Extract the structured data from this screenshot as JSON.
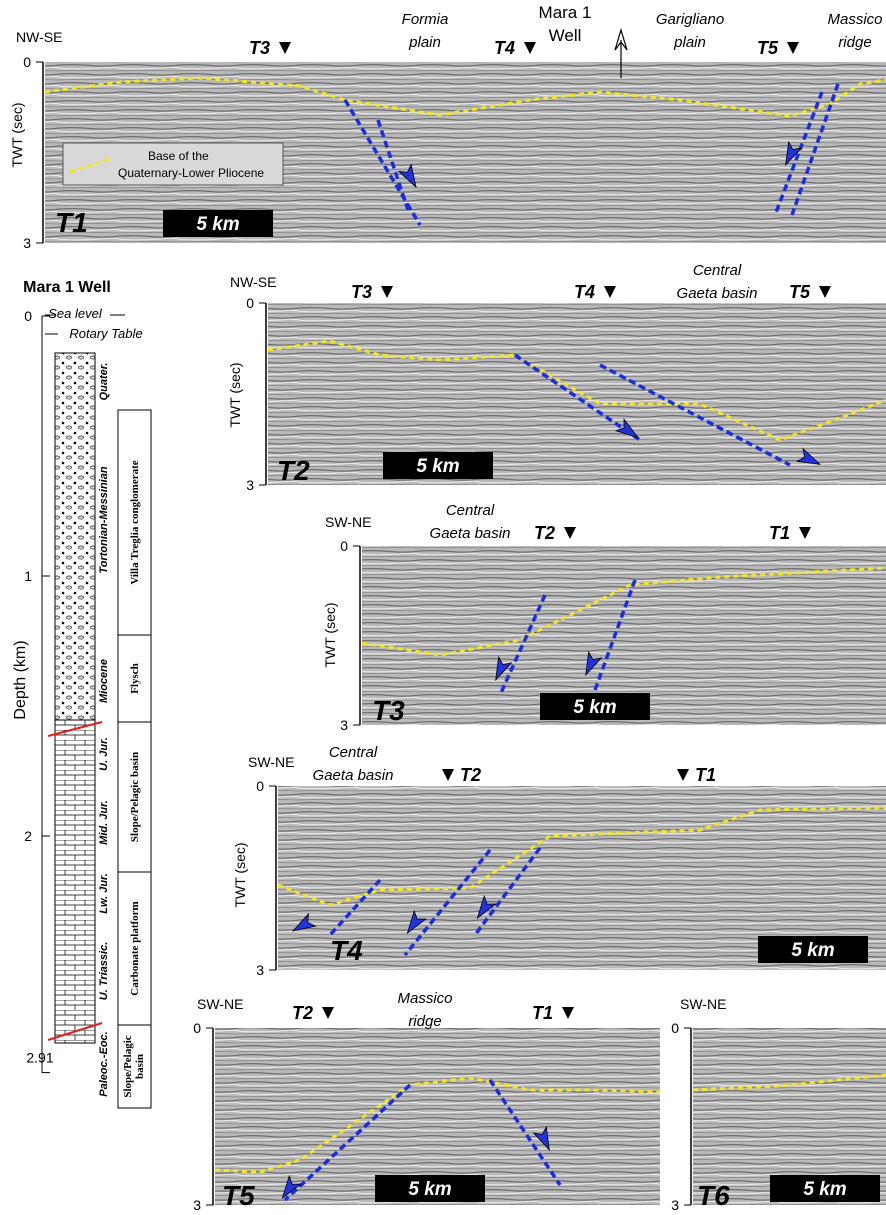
{
  "well": {
    "title": "Mara 1 Well",
    "axis_label": "Depth (km)",
    "ticks": [
      0,
      1,
      2,
      2.91
    ],
    "sea_level": "Sea level",
    "rotary_table": "Rotary Table",
    "ages": [
      "Quater.",
      "Tortonian-Messinian",
      "Miocene",
      "U. Jur.",
      "Mid. Jur.",
      "Lw. Jur.",
      "U. Triassic.",
      "Paleoc.-Eoc."
    ],
    "formations": [
      "Villa Treglia conglomerate",
      "Flysch",
      "Slope/Pelagic basin",
      "Carbonate platform",
      "Slope/Pelagic basin"
    ]
  },
  "legend": [
    "Base of the",
    "Quaternary-Lower Pliocene"
  ],
  "panels": [
    {
      "label": "T1",
      "orientation": "NW-SE",
      "axis_label": "TWT (sec)",
      "ticks": [
        0,
        3
      ],
      "scale": "5 km",
      "markers": [
        "T3",
        "T4",
        "T5"
      ],
      "annotations": [
        [
          "Formia",
          "plain"
        ],
        [
          "Mara 1",
          "Well"
        ],
        [
          "Garigliano",
          "plain"
        ],
        [
          "Massico",
          "ridge"
        ]
      ]
    },
    {
      "label": "T2",
      "orientation": "NW-SE",
      "axis_label": "TWT (sec)",
      "ticks": [
        0,
        3
      ],
      "scale": "5 km",
      "markers": [
        "T3",
        "T4",
        "T5"
      ],
      "annotations": [
        [
          "Central",
          "Gaeta basin"
        ]
      ]
    },
    {
      "label": "T3",
      "orientation": "SW-NE",
      "axis_label": "TWT (sec)",
      "ticks": [
        0,
        3
      ],
      "scale": "5 km",
      "markers": [
        "T2",
        "T1"
      ],
      "annotations": [
        [
          "Central",
          "Gaeta basin"
        ]
      ]
    },
    {
      "label": "T4",
      "orientation": "SW-NE",
      "axis_label": "TWT (sec)",
      "ticks": [
        0,
        3
      ],
      "scale": "5 km",
      "markers": [
        "T2",
        "T1"
      ],
      "annotations": [
        [
          "Central",
          "Gaeta basin"
        ]
      ]
    },
    {
      "label": "T5",
      "orientation": "SW-NE",
      "ticks": [
        0,
        3
      ],
      "scale": "5 km",
      "markers": [
        "T2",
        "T1"
      ],
      "annotations": [
        [
          "Massico",
          "ridge"
        ]
      ]
    },
    {
      "label": "T6",
      "orientation": "SW-NE",
      "ticks": [
        0,
        3
      ],
      "scale": "5 km"
    }
  ]
}
